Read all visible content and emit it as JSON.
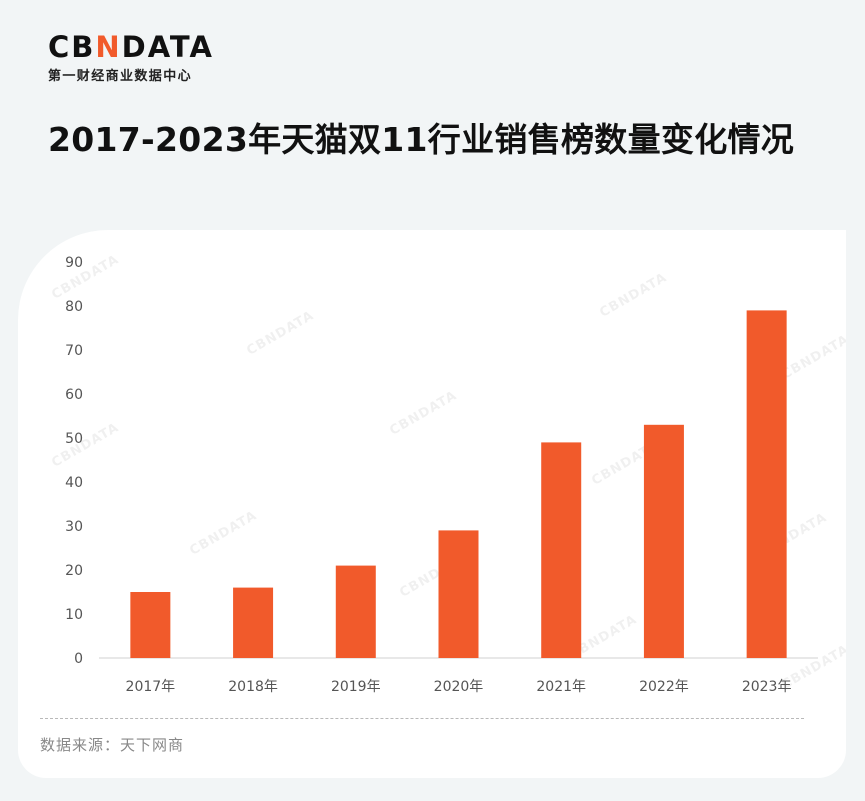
{
  "brand": {
    "logo_left": "CB",
    "logo_n": "N",
    "logo_right": "DATA",
    "tagline": "第一财经商业数据中心"
  },
  "title": "2017-2023年天猫双11行业销售榜数量变化情况",
  "source": "数据来源：天下网商",
  "watermark": "CBNDATA",
  "colors": {
    "bar": "#f15a2b",
    "accent": "#f15a2b"
  },
  "chart_data": {
    "type": "bar",
    "categories": [
      "2017年",
      "2018年",
      "2019年",
      "2020年",
      "2021年",
      "2022年",
      "2023年"
    ],
    "values": [
      15,
      16,
      21,
      29,
      49,
      53,
      79
    ],
    "yticks": [
      0,
      10,
      20,
      30,
      40,
      50,
      60,
      70,
      80,
      90
    ],
    "ylim": [
      0,
      90
    ],
    "grid": false,
    "legend": "none"
  }
}
